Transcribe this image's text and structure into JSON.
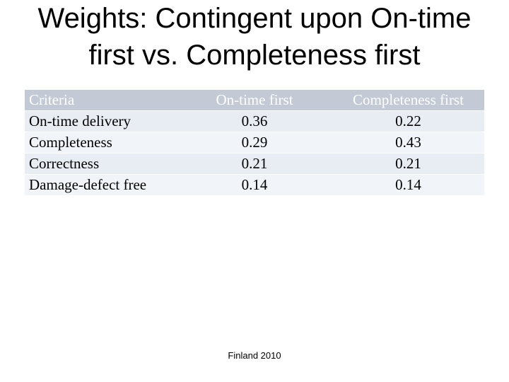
{
  "title": "Weights: Contingent upon On-time first vs. Completeness first",
  "table": {
    "header": [
      "Criteria",
      "On-time first",
      "Completeness first"
    ],
    "rows": [
      [
        "On-time delivery",
        0.36,
        0.22
      ],
      [
        "Completeness",
        0.29,
        0.43
      ],
      [
        "Correctness",
        0.21,
        0.21
      ],
      [
        "Damage-defect free",
        0.14,
        0.14
      ]
    ]
  },
  "footer": "Finland 2010"
}
